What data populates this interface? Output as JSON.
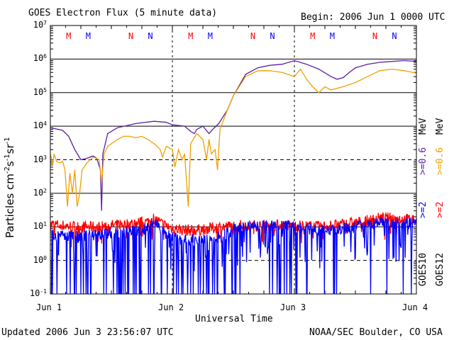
{
  "title": "GOES Electron Flux (5 minute data)",
  "begin_label": "Begin: 2006 Jun 1 0000 UTC",
  "footer_left": "Updated 2006 Jun  3 23:56:07 UTC",
  "footer_right": "NOAA/SEC Boulder, CO USA",
  "colors": {
    "purple": "#5a1fa3",
    "orange": "#f0a000",
    "red": "#ff0000",
    "blue": "#0000ff"
  },
  "chart_data": {
    "type": "line",
    "title": "GOES Electron Flux (5 minute data)",
    "xlabel": "Universal Time",
    "ylabel": "Particles cm-2s-1sr-1",
    "ylabel_parts": {
      "base": "Particles cm",
      "e1": "-2",
      "mid1": "s",
      "e2": "-1",
      "mid2": "sr",
      "e3": "-1"
    },
    "y_scale": "log",
    "ylim": [
      0.1,
      10000000
    ],
    "y_tick_labels": [
      {
        "base": "10",
        "exp": "7"
      },
      {
        "base": "10",
        "exp": "6"
      },
      {
        "base": "10",
        "exp": "5"
      },
      {
        "base": "10",
        "exp": "4"
      },
      {
        "base": "10",
        "exp": "3"
      },
      {
        "base": "10",
        "exp": "2"
      },
      {
        "base": "10",
        "exp": "1"
      },
      {
        "base": "10",
        "exp": "0"
      },
      {
        "base": "10",
        "exp": "-1"
      }
    ],
    "x_unit": "day",
    "xlim": [
      0,
      3
    ],
    "x_tick_labels": [
      "Jun 1",
      "Jun 2",
      "Jun 3",
      "Jun 4"
    ],
    "grid": "horizontal",
    "dashed_levels": [
      1000,
      1
    ],
    "legend_right": {
      "goes10": "GOES10",
      "goes12": "GOES12",
      "g10_high": ">=0.6",
      "g10_low": ">=2",
      "g12_high": ">=0.6",
      "g12_low": ">=2",
      "unit": "MeV"
    },
    "markers": {
      "days": [
        [
          {
            "t": 0.15,
            "label": "M",
            "color": "red"
          },
          {
            "t": 0.31,
            "label": "M",
            "color": "blue"
          },
          {
            "t": 0.66,
            "label": "N",
            "color": "red"
          },
          {
            "t": 0.82,
            "label": "N",
            "color": "blue"
          }
        ],
        [
          {
            "t": 0.15,
            "label": "M",
            "color": "red"
          },
          {
            "t": 0.31,
            "label": "M",
            "color": "blue"
          },
          {
            "t": 0.66,
            "label": "N",
            "color": "red"
          },
          {
            "t": 0.82,
            "label": "N",
            "color": "blue"
          }
        ],
        [
          {
            "t": 0.15,
            "label": "M",
            "color": "red"
          },
          {
            "t": 0.31,
            "label": "M",
            "color": "blue"
          },
          {
            "t": 0.66,
            "label": "N",
            "color": "red"
          },
          {
            "t": 0.82,
            "label": "N",
            "color": "blue"
          }
        ]
      ]
    },
    "series": [
      {
        "color": "purple",
        "points": [
          [
            0,
            9000
          ],
          [
            0.1,
            7500
          ],
          [
            0.15,
            5000
          ],
          [
            0.2,
            2000
          ],
          [
            0.25,
            1000
          ],
          [
            0.3,
            1100
          ],
          [
            0.35,
            1300
          ],
          [
            0.38,
            1100
          ],
          [
            0.41,
            500
          ],
          [
            0.42,
            30
          ],
          [
            0.43,
            1500
          ],
          [
            0.45,
            3000
          ],
          [
            0.47,
            6000
          ],
          [
            0.55,
            9000
          ],
          [
            0.7,
            12000
          ],
          [
            0.85,
            14000
          ],
          [
            0.95,
            13000
          ],
          [
            1.0,
            11000
          ],
          [
            1.1,
            10000
          ],
          [
            1.15,
            7000
          ],
          [
            1.18,
            6000
          ],
          [
            1.2,
            8000
          ],
          [
            1.25,
            10000
          ],
          [
            1.3,
            6000
          ],
          [
            1.33,
            8000
          ],
          [
            1.38,
            12000
          ],
          [
            1.45,
            30000
          ],
          [
            1.5,
            80000
          ],
          [
            1.6,
            350000
          ],
          [
            1.7,
            550000
          ],
          [
            1.8,
            650000
          ],
          [
            1.9,
            700000
          ],
          [
            2.0,
            900000
          ],
          [
            2.1,
            700000
          ],
          [
            2.2,
            500000
          ],
          [
            2.3,
            300000
          ],
          [
            2.35,
            250000
          ],
          [
            2.4,
            280000
          ],
          [
            2.45,
            400000
          ],
          [
            2.5,
            550000
          ],
          [
            2.6,
            700000
          ],
          [
            2.7,
            800000
          ],
          [
            2.8,
            850000
          ],
          [
            2.9,
            900000
          ],
          [
            3.0,
            850000
          ]
        ]
      },
      {
        "color": "orange",
        "points": [
          [
            0,
            1500
          ],
          [
            0.02,
            700
          ],
          [
            0.03,
            1500
          ],
          [
            0.05,
            900
          ],
          [
            0.08,
            800
          ],
          [
            0.1,
            900
          ],
          [
            0.12,
            500
          ],
          [
            0.14,
            40
          ],
          [
            0.16,
            400
          ],
          [
            0.18,
            100
          ],
          [
            0.2,
            500
          ],
          [
            0.22,
            40
          ],
          [
            0.24,
            100
          ],
          [
            0.26,
            500
          ],
          [
            0.3,
            800
          ],
          [
            0.35,
            1200
          ],
          [
            0.4,
            1000
          ],
          [
            0.42,
            200
          ],
          [
            0.44,
            1500
          ],
          [
            0.47,
            2500
          ],
          [
            0.5,
            3000
          ],
          [
            0.55,
            4000
          ],
          [
            0.6,
            5000
          ],
          [
            0.65,
            5000
          ],
          [
            0.7,
            4500
          ],
          [
            0.75,
            5000
          ],
          [
            0.8,
            4000
          ],
          [
            0.85,
            3000
          ],
          [
            0.9,
            2000
          ],
          [
            0.92,
            1200
          ],
          [
            0.95,
            2500
          ],
          [
            1.0,
            2000
          ],
          [
            1.02,
            600
          ],
          [
            1.05,
            2000
          ],
          [
            1.08,
            1000
          ],
          [
            1.1,
            1500
          ],
          [
            1.12,
            150
          ],
          [
            1.13,
            40
          ],
          [
            1.15,
            3000
          ],
          [
            1.2,
            6000
          ],
          [
            1.25,
            4000
          ],
          [
            1.28,
            1000
          ],
          [
            1.3,
            4000
          ],
          [
            1.32,
            1500
          ],
          [
            1.35,
            2000
          ],
          [
            1.37,
            500
          ],
          [
            1.39,
            8000
          ],
          [
            1.45,
            30000
          ],
          [
            1.5,
            80000
          ],
          [
            1.6,
            300000
          ],
          [
            1.7,
            450000
          ],
          [
            1.8,
            450000
          ],
          [
            1.9,
            400000
          ],
          [
            2.0,
            300000
          ],
          [
            2.05,
            500000
          ],
          [
            2.1,
            250000
          ],
          [
            2.15,
            150000
          ],
          [
            2.2,
            100000
          ],
          [
            2.25,
            150000
          ],
          [
            2.3,
            120000
          ],
          [
            2.4,
            150000
          ],
          [
            2.5,
            200000
          ],
          [
            2.6,
            300000
          ],
          [
            2.7,
            450000
          ],
          [
            2.8,
            500000
          ],
          [
            2.9,
            450000
          ],
          [
            3.0,
            380000
          ]
        ]
      },
      {
        "color": "red",
        "noise": true,
        "points": [
          [
            0,
            12
          ],
          [
            0.2,
            10
          ],
          [
            0.4,
            10
          ],
          [
            0.6,
            12
          ],
          [
            0.8,
            14
          ],
          [
            0.85,
            18
          ],
          [
            0.9,
            13
          ],
          [
            1.0,
            9
          ],
          [
            1.1,
            8
          ],
          [
            1.2,
            8
          ],
          [
            1.4,
            10
          ],
          [
            1.6,
            11
          ],
          [
            1.8,
            11
          ],
          [
            2.0,
            11
          ],
          [
            2.2,
            10
          ],
          [
            2.4,
            12
          ],
          [
            2.5,
            13
          ],
          [
            2.6,
            15
          ],
          [
            2.7,
            18
          ],
          [
            2.8,
            18
          ],
          [
            2.9,
            17
          ],
          [
            3.0,
            16
          ]
        ]
      },
      {
        "color": "blue",
        "noise": true,
        "points": [
          [
            0,
            6
          ],
          [
            0.2,
            5
          ],
          [
            0.4,
            6
          ],
          [
            0.6,
            7
          ],
          [
            0.8,
            9
          ],
          [
            0.85,
            18
          ],
          [
            0.9,
            8
          ],
          [
            1.0,
            5
          ],
          [
            1.1,
            4
          ],
          [
            1.2,
            4
          ],
          [
            1.4,
            5
          ],
          [
            1.5,
            8
          ],
          [
            1.6,
            10
          ],
          [
            1.8,
            11
          ],
          [
            2.0,
            10
          ],
          [
            2.2,
            8
          ],
          [
            2.4,
            9
          ],
          [
            2.5,
            10
          ],
          [
            2.6,
            12
          ],
          [
            2.7,
            13
          ],
          [
            2.8,
            12
          ],
          [
            2.9,
            13
          ],
          [
            3.0,
            14
          ]
        ]
      }
    ]
  }
}
